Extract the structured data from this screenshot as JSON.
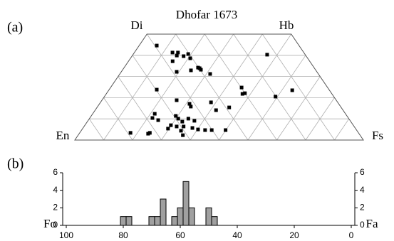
{
  "chart_data": [
    {
      "type": "quadrilateral",
      "title": "Dhofar 1673",
      "corners": [
        "Di",
        "Hb",
        "En",
        "Fs"
      ],
      "xlim": [
        0,
        100
      ],
      "ylim": [
        0,
        50
      ],
      "grid": true,
      "color": "#000000",
      "x": [
        6.1,
        13.2,
        15.1,
        15.4,
        19.0,
        17.9,
        15.3,
        20.7,
        25.6,
        23.8,
        26.3,
        27.1,
        31.3,
        19.2,
        46.5,
        16.5,
        45.4,
        47.9,
        47.2,
        59.3,
        63.6,
        25.9,
        31.2,
        32.3,
        38.3,
        41.9,
        45.8,
        21.5,
        24.2,
        21.7,
        29.3,
        30.8,
        34.3,
        32.9,
        36.9,
        29.8,
        29.6,
        32.1,
        34.5,
        34.6,
        37.9,
        36.3,
        40.2,
        42.8,
        45.1,
        49.9,
        24.3,
        23.9,
        17.6
      ],
      "values": [
        44.6,
        41.3,
        41.3,
        39.9,
        40.6,
        39.6,
        37.2,
        38.6,
        34.2,
        32.9,
        33.9,
        33.2,
        31.2,
        32.2,
        40.3,
        23.8,
        24.8,
        22.1,
        21.8,
        20.5,
        23.5,
        18.8,
        17.1,
        15.8,
        17.8,
        14.1,
        15.4,
        12.4,
        9.4,
        10.4,
        11.4,
        10.1,
        10.1,
        8.7,
        9.1,
        7.0,
        5.4,
        6.4,
        6.4,
        4.4,
        5.7,
        2.3,
        5.0,
        4.7,
        4.7,
        4.7,
        3.4,
        3.0,
        3.4
      ]
    },
    {
      "type": "histogram",
      "ylabel": "Fo",
      "y2label": "Fa",
      "bins": [
        47,
        49,
        51,
        53,
        55,
        57,
        59,
        61,
        63,
        65,
        67,
        69,
        71,
        73,
        75,
        77,
        79,
        81
      ],
      "values": [
        1,
        2,
        0,
        0,
        2,
        5,
        2,
        1,
        0,
        3,
        1,
        1,
        0,
        0,
        0,
        1,
        1
      ],
      "color": "#a0a0a0",
      "xlim": [
        100,
        0
      ],
      "xticks": [
        100,
        80,
        60,
        40,
        20,
        0
      ],
      "ylim": [
        0,
        6
      ],
      "yticks": [
        0,
        2,
        4,
        6
      ],
      "y2lim": [
        0,
        6
      ],
      "y2ticks": [
        0,
        2,
        4,
        6
      ]
    }
  ],
  "panel_labels": [
    "(a)",
    "(b)"
  ]
}
